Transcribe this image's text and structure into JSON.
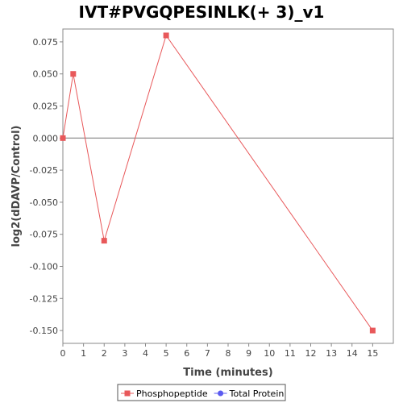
{
  "chart_data": {
    "type": "line",
    "title": "IVT#PVGQPESINLK(+ 3)_v1",
    "xlabel": "Time (minutes)",
    "ylabel": "log2(dDAVP/Control)",
    "xlim": [
      0,
      16
    ],
    "ylim": [
      -0.16,
      0.085
    ],
    "x_ticks": [
      0,
      1,
      2,
      3,
      4,
      5,
      6,
      7,
      8,
      9,
      10,
      11,
      12,
      13,
      14,
      15
    ],
    "y_ticks": [
      0.075,
      0.05,
      0.025,
      0.0,
      -0.025,
      -0.05,
      -0.075,
      -0.1,
      -0.125,
      -0.15
    ],
    "y_tick_labels": [
      "0.075",
      "0.050",
      "0.025",
      "0.000",
      "-0.025",
      "-0.050",
      "-0.075",
      "-0.100",
      "-0.125",
      "-0.150"
    ],
    "zero_line": true,
    "grid": false,
    "legend_position": "bottom",
    "series": [
      {
        "name": "Phosphopeptide",
        "color": "#e8585a",
        "marker": "square",
        "x": [
          0,
          0.5,
          2,
          5,
          15
        ],
        "y": [
          0.0,
          0.05,
          -0.08,
          0.08,
          -0.15
        ]
      },
      {
        "name": "Total Protein",
        "color": "#5b5bf0",
        "marker": "circle",
        "x": [],
        "y": []
      }
    ]
  }
}
